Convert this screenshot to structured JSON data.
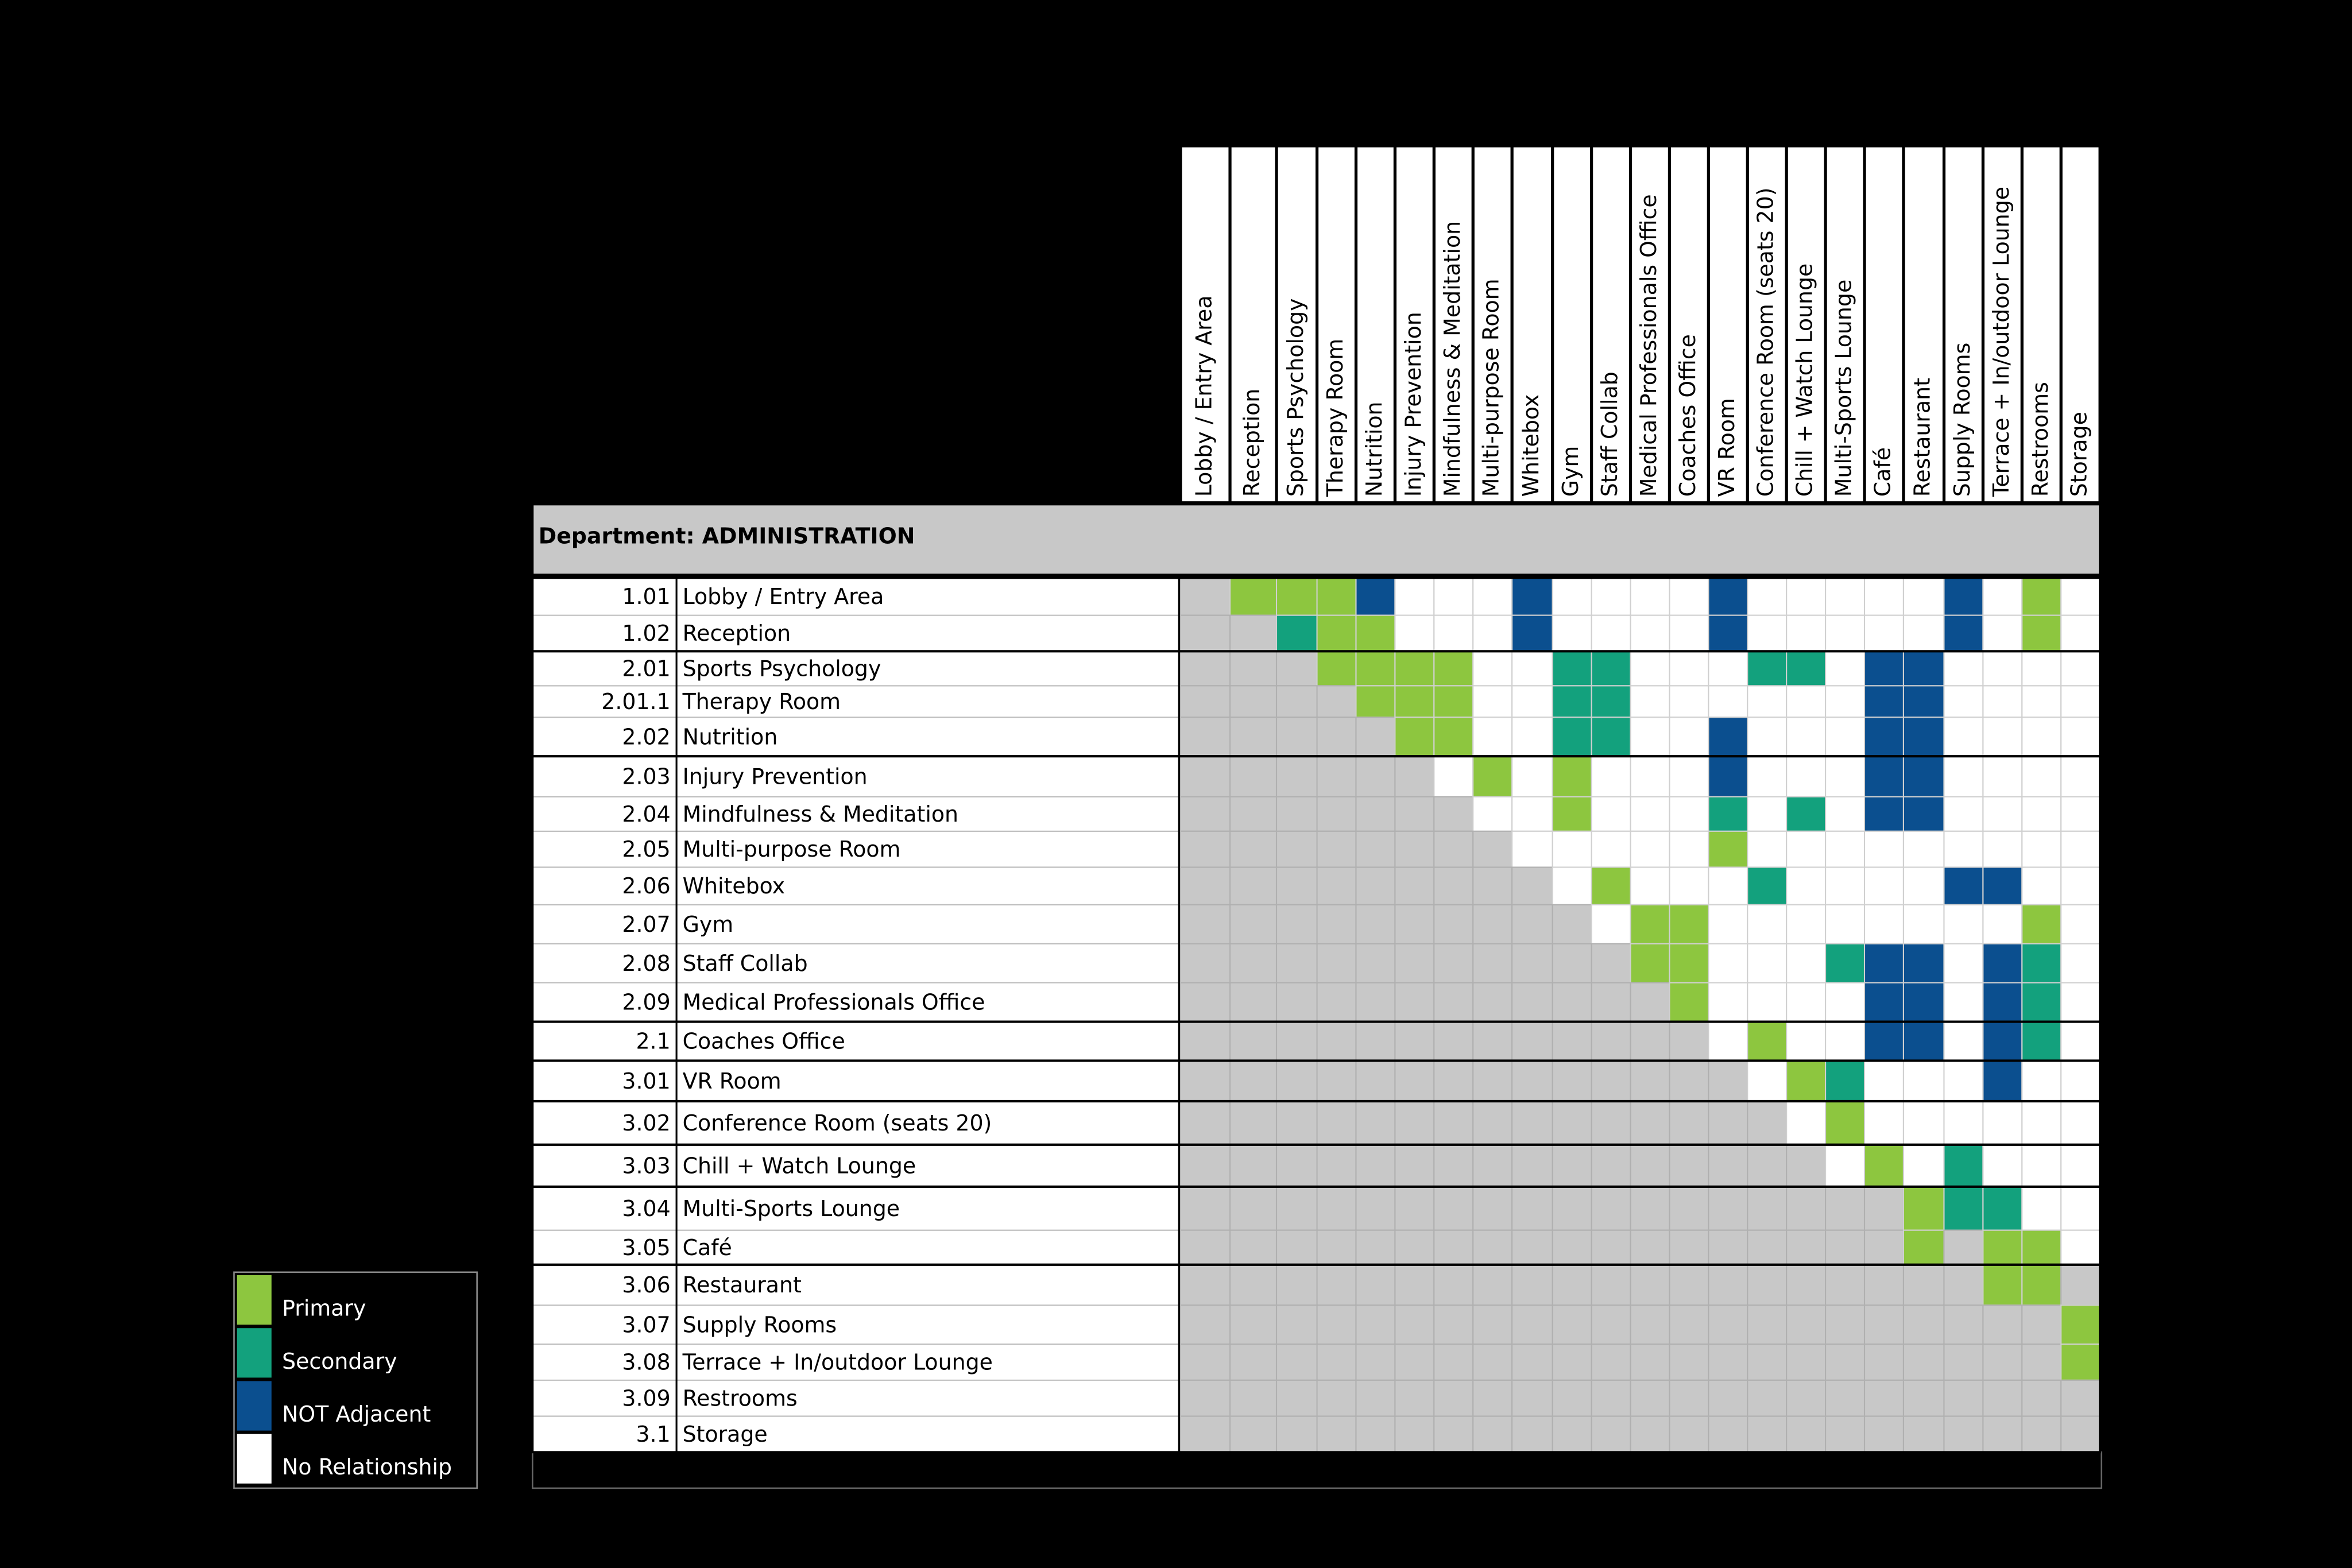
{
  "department": "Department: ADMINISTRATION",
  "columns": [
    "Lobby / Entry Area",
    "Reception",
    "Sports Psychology",
    "Therapy Room",
    "Nutrition",
    "Injury Prevention",
    "Mindfulness & Meditation",
    "Multi-purpose Room",
    "Whitebox",
    "Gym",
    "Staff Collab",
    "Medical Professionals Office",
    "Coaches Office",
    "VR Room",
    "Conference Room (seats 20)",
    "Chill + Watch Lounge",
    "Multi-Sports Lounge",
    "Café",
    "Restaurant",
    "Supply Rooms",
    "Terrace + In/outdoor Lounge",
    "Restrooms",
    "Storage"
  ],
  "rows": [
    {
      "number": "1.01",
      "name": "Lobby / Entry Area"
    },
    {
      "number": "1.02",
      "name": "Reception"
    },
    {
      "number": "2.01",
      "name": "Sports Psychology"
    },
    {
      "number": "2.01.1",
      "name": "Therapy Room"
    },
    {
      "number": "2.02",
      "name": "Nutrition"
    },
    {
      "number": "2.03",
      "name": "Injury Prevention"
    },
    {
      "number": "2.04",
      "name": "Mindfulness & Meditation"
    },
    {
      "number": "2.05",
      "name": "Multi-purpose Room"
    },
    {
      "number": "2.06",
      "name": "Whitebox"
    },
    {
      "number": "2.07",
      "name": "Gym"
    },
    {
      "number": "2.08",
      "name": "Staff Collab"
    },
    {
      "number": "2.09",
      "name": "Medical Professionals Office"
    },
    {
      "number": "2.1",
      "name": "Coaches Office"
    },
    {
      "number": "3.01",
      "name": "VR Room"
    },
    {
      "number": "3.02",
      "name": "Conference Room (seats 20)"
    },
    {
      "number": "3.03",
      "name": "Chill + Watch Lounge"
    },
    {
      "number": "3.04",
      "name": "Multi-Sports Lounge"
    },
    {
      "number": "3.05",
      "name": "Café"
    },
    {
      "number": "3.06",
      "name": "Restaurant"
    },
    {
      "number": "3.07",
      "name": "Supply Rooms"
    },
    {
      "number": "3.08",
      "name": "Terrace + In/outdoor Lounge"
    },
    {
      "number": "3.09",
      "name": "Restrooms"
    },
    {
      "number": "3.1",
      "name": "Storage"
    }
  ],
  "legend": [
    {
      "label": "Primary",
      "color": "#8dc63f"
    },
    {
      "label": "Secondary",
      "color": "#13a17d"
    },
    {
      "label": "NOT Adjacent",
      "color": "#0b4f8f"
    },
    {
      "label": "No Relationship",
      "color": "#ffffff"
    }
  ],
  "empty_color": "#c8c8c8",
  "matrix": [
    [
      null,
      0,
      0,
      0,
      2,
      3,
      3,
      3,
      2,
      3,
      3,
      3,
      3,
      2,
      3,
      3,
      3,
      3,
      3,
      2,
      3,
      0,
      3
    ],
    [
      null,
      null,
      1,
      0,
      0,
      3,
      3,
      3,
      2,
      3,
      3,
      3,
      3,
      2,
      3,
      3,
      3,
      3,
      3,
      2,
      3,
      0,
      3
    ],
    [
      null,
      null,
      null,
      0,
      0,
      0,
      0,
      3,
      3,
      1,
      1,
      3,
      3,
      3,
      1,
      1,
      3,
      2,
      2,
      3,
      3,
      3,
      3
    ],
    [
      null,
      null,
      null,
      null,
      0,
      0,
      0,
      3,
      3,
      1,
      1,
      3,
      3,
      3,
      3,
      3,
      3,
      2,
      2,
      3,
      3,
      3,
      3
    ],
    [
      null,
      null,
      null,
      null,
      null,
      0,
      0,
      3,
      3,
      1,
      1,
      3,
      3,
      2,
      3,
      3,
      3,
      2,
      2,
      3,
      3,
      3,
      3
    ],
    [
      null,
      null,
      null,
      null,
      null,
      null,
      3,
      0,
      3,
      0,
      3,
      3,
      3,
      2,
      3,
      3,
      3,
      2,
      2,
      3,
      3,
      3,
      3
    ],
    [
      null,
      null,
      null,
      null,
      null,
      null,
      null,
      3,
      3,
      0,
      3,
      3,
      3,
      1,
      3,
      1,
      3,
      2,
      2,
      3,
      3,
      3,
      3
    ],
    [
      null,
      null,
      null,
      null,
      null,
      null,
      null,
      null,
      3,
      3,
      3,
      3,
      3,
      0,
      3,
      3,
      3,
      3,
      3,
      3,
      3,
      3,
      3
    ],
    [
      null,
      null,
      null,
      null,
      null,
      null,
      null,
      null,
      null,
      3,
      0,
      3,
      3,
      3,
      1,
      3,
      3,
      3,
      3,
      2,
      2,
      3,
      3
    ],
    [
      null,
      null,
      null,
      null,
      null,
      null,
      null,
      null,
      null,
      null,
      3,
      0,
      0,
      3,
      3,
      3,
      3,
      3,
      3,
      3,
      3,
      0,
      3
    ],
    [
      null,
      null,
      null,
      null,
      null,
      null,
      null,
      null,
      null,
      null,
      null,
      0,
      0,
      3,
      3,
      3,
      1,
      2,
      2,
      3,
      2,
      1,
      3
    ],
    [
      null,
      null,
      null,
      null,
      null,
      null,
      null,
      null,
      null,
      null,
      null,
      null,
      0,
      3,
      3,
      3,
      3,
      2,
      2,
      3,
      2,
      1,
      3
    ],
    [
      null,
      null,
      null,
      null,
      null,
      null,
      null,
      null,
      null,
      null,
      null,
      null,
      null,
      3,
      0,
      3,
      3,
      2,
      2,
      3,
      2,
      1,
      3
    ],
    [
      null,
      null,
      null,
      null,
      null,
      null,
      null,
      null,
      null,
      null,
      null,
      null,
      null,
      null,
      3,
      0,
      1,
      3,
      3,
      3,
      2,
      3,
      3
    ],
    [
      null,
      null,
      null,
      null,
      null,
      null,
      null,
      null,
      null,
      null,
      null,
      null,
      null,
      null,
      null,
      3,
      0,
      3,
      3,
      3,
      3,
      3,
      3
    ],
    [
      null,
      null,
      null,
      null,
      null,
      null,
      null,
      null,
      null,
      null,
      null,
      null,
      null,
      null,
      null,
      null,
      3,
      0,
      3,
      1,
      3,
      3,
      3
    ],
    [
      null,
      null,
      null,
      null,
      null,
      null,
      null,
      null,
      null,
      null,
      null,
      null,
      null,
      null,
      null,
      null,
      null,
      null,
      0,
      1,
      1,
      3,
      3
    ],
    [
      null,
      null,
      null,
      null,
      null,
      null,
      null,
      null,
      null,
      null,
      null,
      null,
      null,
      null,
      null,
      null,
      null,
      null,
      0,
      null,
      0,
      0,
      3
    ],
    [
      null,
      null,
      null,
      null,
      null,
      null,
      null,
      null,
      null,
      null,
      null,
      null,
      null,
      null,
      null,
      null,
      null,
      null,
      null,
      null,
      0,
      0,
      null
    ],
    [
      null,
      null,
      null,
      null,
      null,
      null,
      null,
      null,
      null,
      null,
      null,
      null,
      null,
      null,
      null,
      null,
      null,
      null,
      null,
      null,
      null,
      null,
      0
    ],
    [
      null,
      null,
      null,
      null,
      null,
      null,
      null,
      null,
      null,
      null,
      null,
      null,
      null,
      null,
      null,
      null,
      null,
      null,
      null,
      null,
      null,
      null,
      0
    ],
    [
      null,
      null,
      null,
      null,
      null,
      null,
      null,
      null,
      null,
      null,
      null,
      null,
      null,
      null,
      null,
      null,
      null,
      null,
      null,
      null,
      null,
      null,
      null
    ],
    [
      null,
      null,
      null,
      null,
      null,
      null,
      null,
      null,
      null,
      null,
      null,
      null,
      null,
      null,
      null,
      null,
      null,
      null,
      null,
      null,
      null,
      null,
      null
    ]
  ]
}
